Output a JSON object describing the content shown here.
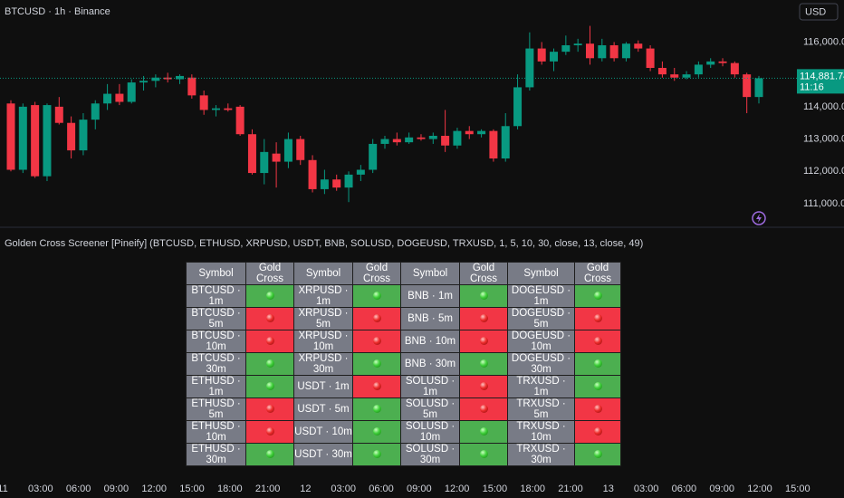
{
  "header": {
    "symbol_title": "BTCUSD · 1h · Binance",
    "currency": "USD"
  },
  "chart_data": {
    "type": "candlestick",
    "up_color": "#089981",
    "down_color": "#f23645",
    "ylim": [
      110300,
      117300
    ],
    "yticks": [
      {
        "value": 116000,
        "label": "116,000.00"
      },
      {
        "value": 115000,
        "label": "115,000.00"
      },
      {
        "value": 114000,
        "label": "114,000.00"
      },
      {
        "value": 113000,
        "label": "113,000.00"
      },
      {
        "value": 112000,
        "label": "112,000.00"
      },
      {
        "value": 111000,
        "label": "111,000.00"
      }
    ],
    "x": [
      "11",
      "03:00",
      "06:00",
      "09:00",
      "12:00",
      "15:00",
      "18:00",
      "21:00",
      "12",
      "03:00",
      "06:00",
      "09:00",
      "12:00",
      "15:00",
      "18:00",
      "21:00",
      "13",
      "03:00",
      "06:00",
      "09:00",
      "12:00",
      "15:00"
    ],
    "last_price": 114881.74,
    "last_price_label": "114,881.74",
    "countdown": "11:16",
    "candles": [
      [
        114100,
        114200,
        112000,
        112050
      ],
      [
        112050,
        114100,
        111950,
        114000
      ],
      [
        114050,
        114150,
        111800,
        111850
      ],
      [
        111850,
        114100,
        111700,
        114050
      ],
      [
        114000,
        114300,
        113450,
        113500
      ],
      [
        113500,
        113700,
        112400,
        112650
      ],
      [
        112650,
        113800,
        112500,
        113600
      ],
      [
        113600,
        114200,
        113300,
        114100
      ],
      [
        114100,
        114700,
        113900,
        114400
      ],
      [
        114400,
        114700,
        114050,
        114150
      ],
      [
        114150,
        114850,
        114100,
        114750
      ],
      [
        114750,
        114950,
        114500,
        114800
      ],
      [
        114800,
        115000,
        114600,
        114900
      ],
      [
        114900,
        115050,
        114750,
        114850
      ],
      [
        114850,
        115000,
        114700,
        114950
      ],
      [
        114900,
        115000,
        114250,
        114350
      ],
      [
        114350,
        114500,
        113750,
        113900
      ],
      [
        113900,
        114050,
        113700,
        113950
      ],
      [
        113950,
        114100,
        113850,
        113900
      ],
      [
        114000,
        114050,
        113100,
        113150
      ],
      [
        113150,
        113300,
        111900,
        111950
      ],
      [
        111950,
        113000,
        111600,
        112600
      ],
      [
        112550,
        112900,
        111500,
        112300
      ],
      [
        112300,
        113200,
        112100,
        113000
      ],
      [
        113000,
        113100,
        112200,
        112350
      ],
      [
        112350,
        112500,
        111350,
        111450
      ],
      [
        111450,
        112050,
        111300,
        111750
      ],
      [
        111750,
        111900,
        111400,
        111500
      ],
      [
        111500,
        112000,
        111050,
        111900
      ],
      [
        111900,
        112200,
        111700,
        112050
      ],
      [
        112050,
        113000,
        111950,
        112850
      ],
      [
        112850,
        113100,
        112700,
        113000
      ],
      [
        113000,
        113200,
        112800,
        112900
      ],
      [
        112900,
        113200,
        112850,
        113050
      ],
      [
        113050,
        113150,
        112950,
        113000
      ],
      [
        113000,
        113200,
        112850,
        113100
      ],
      [
        113100,
        113900,
        112600,
        112800
      ],
      [
        112800,
        113350,
        112700,
        113250
      ],
      [
        113250,
        113400,
        113000,
        113150
      ],
      [
        113150,
        113300,
        113050,
        113250
      ],
      [
        113250,
        113300,
        112300,
        112400
      ],
      [
        112400,
        113800,
        112300,
        113400
      ],
      [
        113400,
        115000,
        113300,
        114600
      ],
      [
        114600,
        116300,
        114500,
        115800
      ],
      [
        115800,
        116000,
        115300,
        115400
      ],
      [
        115400,
        115800,
        115100,
        115700
      ],
      [
        115700,
        116200,
        115600,
        115900
      ],
      [
        115900,
        116100,
        115700,
        115950
      ],
      [
        115950,
        116500,
        115300,
        115500
      ],
      [
        115500,
        116100,
        115400,
        115900
      ],
      [
        115900,
        116000,
        115400,
        115500
      ],
      [
        115500,
        116000,
        115400,
        115950
      ],
      [
        115950,
        116050,
        115700,
        115800
      ],
      [
        115800,
        115900,
        115100,
        115200
      ],
      [
        115200,
        115400,
        114900,
        115000
      ],
      [
        115000,
        115200,
        114800,
        114900
      ],
      [
        114900,
        115100,
        114850,
        115000
      ],
      [
        115000,
        115400,
        114900,
        115300
      ],
      [
        115300,
        115500,
        115200,
        115400
      ],
      [
        115400,
        115500,
        115250,
        115350
      ],
      [
        115350,
        115400,
        114900,
        115000
      ],
      [
        115000,
        115050,
        113800,
        114300
      ],
      [
        114300,
        114950,
        114100,
        114880
      ]
    ]
  },
  "indicator": {
    "title": "Golden Cross Screener [Pineify] (BTCUSD, ETHUSD, XRPUSD, USDT, BNB, SOLUSD, DOGEUSD, TRXUSD, 1, 5, 10, 30, close, 13, close, 49)",
    "table": {
      "header": [
        "Symbol",
        "Gold Cross",
        "Symbol",
        "Gold Cross",
        "Symbol",
        "Gold Cross",
        "Symbol",
        "Gold Cross"
      ],
      "rows": [
        {
          "symbols": [
            "BTCUSD · 1m",
            "XRPUSD · 1m",
            "BNB · 1m",
            "DOGEUSD · 1m"
          ],
          "cross": [
            true,
            true,
            true,
            true
          ]
        },
        {
          "symbols": [
            "BTCUSD · 5m",
            "XRPUSD · 5m",
            "BNB · 5m",
            "DOGEUSD · 5m"
          ],
          "cross": [
            false,
            false,
            false,
            false
          ]
        },
        {
          "symbols": [
            "BTCUSD · 10m",
            "XRPUSD · 10m",
            "BNB · 10m",
            "DOGEUSD · 10m"
          ],
          "cross": [
            false,
            false,
            false,
            false
          ]
        },
        {
          "symbols": [
            "BTCUSD · 30m",
            "XRPUSD · 30m",
            "BNB · 30m",
            "DOGEUSD · 30m"
          ],
          "cross": [
            true,
            true,
            true,
            true
          ]
        },
        {
          "symbols": [
            "ETHUSD · 1m",
            "USDT · 1m",
            "SOLUSD · 1m",
            "TRXUSD · 1m"
          ],
          "cross": [
            true,
            false,
            false,
            true
          ]
        },
        {
          "symbols": [
            "ETHUSD · 5m",
            "USDT · 5m",
            "SOLUSD · 5m",
            "TRXUSD · 5m"
          ],
          "cross": [
            false,
            true,
            false,
            false
          ]
        },
        {
          "symbols": [
            "ETHUSD · 10m",
            "USDT · 10m",
            "SOLUSD · 10m",
            "TRXUSD · 10m"
          ],
          "cross": [
            false,
            true,
            true,
            false
          ]
        },
        {
          "symbols": [
            "ETHUSD · 30m",
            "USDT · 30m",
            "SOLUSD · 30m",
            "TRXUSD · 30m"
          ],
          "cross": [
            true,
            true,
            true,
            true
          ]
        }
      ]
    }
  }
}
